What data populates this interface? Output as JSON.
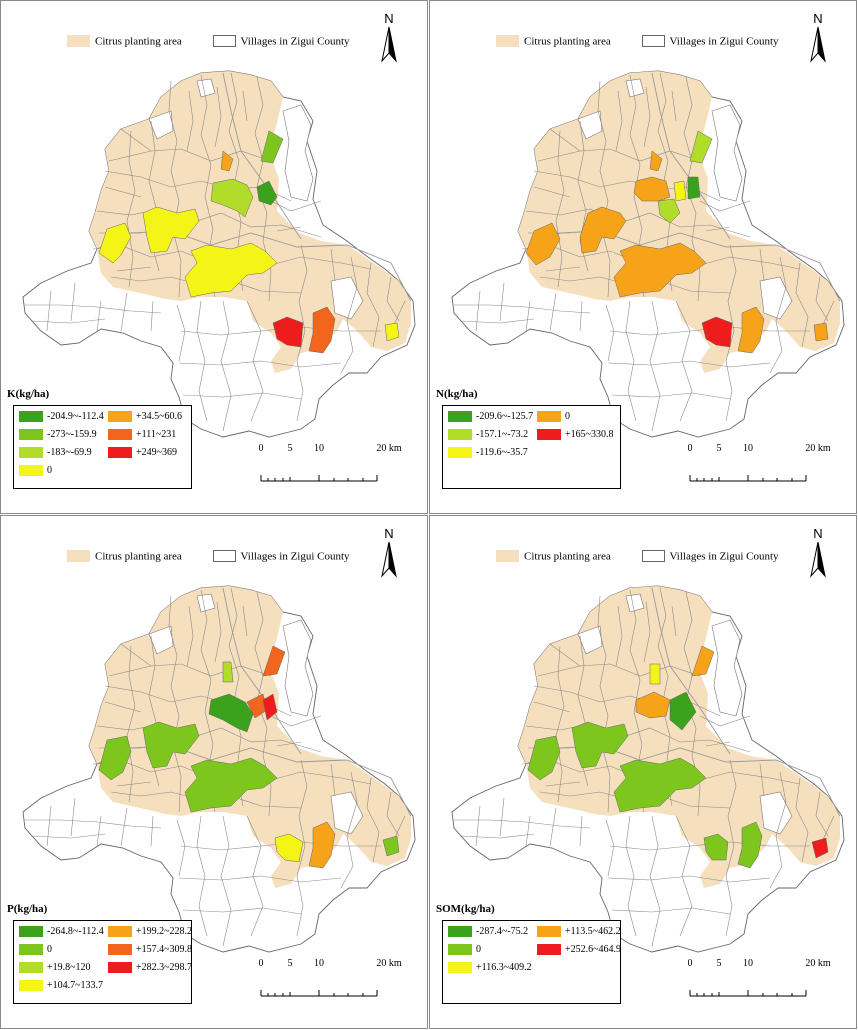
{
  "legend_top": {
    "citrus_label": "Citrus planting area",
    "villages_label": "Villages in Zigui County"
  },
  "north_label": "N",
  "scale": {
    "ticks": [
      "0",
      "5",
      "10",
      "20 km"
    ]
  },
  "colors": {
    "citrus": "#f5dfbd",
    "dark_green": "#3aa21c",
    "green": "#7cc61e",
    "light_green": "#b2dc2a",
    "yellow": "#f4f416",
    "orange": "#f7a319",
    "dark_orange": "#f2651d",
    "red": "#ee1c1c"
  },
  "panels": [
    {
      "title": "K(kg/ha)",
      "legend": [
        {
          "label": "-204.9~-112.4",
          "color": "#3aa21c"
        },
        {
          "label": "-273~-159.9",
          "color": "#7cc61e"
        },
        {
          "label": "-183~-69.9",
          "color": "#b2dc2a"
        },
        {
          "label": "0",
          "color": "#f4f416"
        },
        {
          "label": "+34.5~60.6",
          "color": "#f7a319"
        },
        {
          "label": "+111~231",
          "color": "#f2651d"
        },
        {
          "label": "+249~369",
          "color": "#ee1c1c"
        }
      ]
    },
    {
      "title": "N(kg/ha)",
      "legend": [
        {
          "label": "-209.6~-125.7",
          "color": "#3aa21c"
        },
        {
          "label": "-157.1~-73.2",
          "color": "#b2dc2a"
        },
        {
          "label": "-119.6~-35.7",
          "color": "#f4f416"
        },
        {
          "label": "0",
          "color": "#f7a319"
        },
        {
          "label": "+165~330.8",
          "color": "#ee1c1c"
        }
      ]
    },
    {
      "title": "P(kg/ha)",
      "legend": [
        {
          "label": "-264.8~-112.4",
          "color": "#3aa21c"
        },
        {
          "label": "0",
          "color": "#7cc61e"
        },
        {
          "label": "+19.8~120",
          "color": "#b2dc2a"
        },
        {
          "label": "+104.7~133.7",
          "color": "#f4f416"
        },
        {
          "label": "+199.2~228.2",
          "color": "#f7a319"
        },
        {
          "label": "+157.4~309.8",
          "color": "#f2651d"
        },
        {
          "label": "+282.3~298.7",
          "color": "#ee1c1c"
        }
      ]
    },
    {
      "title": "SOM(kg/ha)",
      "legend": [
        {
          "label": "-287.4~-75.2",
          "color": "#3aa21c"
        },
        {
          "label": "0",
          "color": "#7cc61e"
        },
        {
          "label": "+116.3~409.2",
          "color": "#f4f416"
        },
        {
          "label": "+113.5~462.2",
          "color": "#f7a319"
        },
        {
          "label": "+252.6~464.9",
          "color": "#ee1c1c"
        }
      ]
    }
  ]
}
